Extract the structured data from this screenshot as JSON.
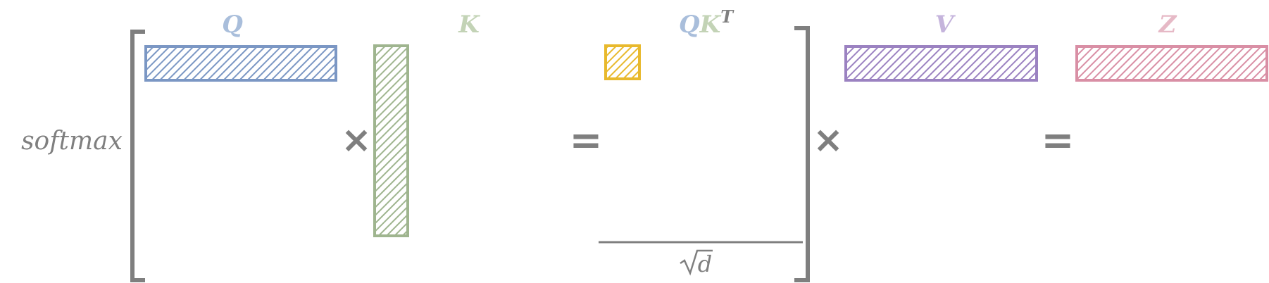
{
  "colors": {
    "q": "#7b97c4",
    "q_label": "#a9bedb",
    "k": "#9fb58f",
    "k_label": "#c3d3b6",
    "qk": "#e8b92d",
    "v": "#9b82c1",
    "v_label": "#c5b4dc",
    "z": "#d98fa5",
    "z_label": "#e6b9c6",
    "ink": "#7f7f7f"
  },
  "labels": {
    "softmax": "softmax",
    "q": "Q",
    "k": "K",
    "qk_q": "Q",
    "qk_k": "K",
    "qk_t": "T",
    "v": "V",
    "z": "Z",
    "sqrt_d": "d",
    "times": "×",
    "equals": "="
  }
}
